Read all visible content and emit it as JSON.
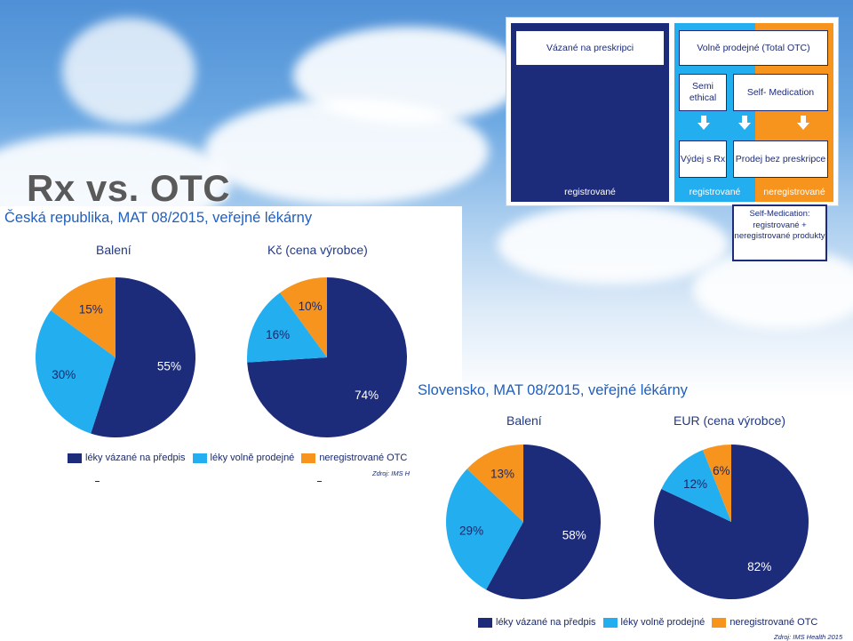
{
  "slide_title": "Rx vs. OTC",
  "colors": {
    "rx": "#1c2b7a",
    "otc": "#23aef0",
    "nonreg": "#f7941d"
  },
  "diagram": {
    "rx_box": "Vázané na preskripci",
    "otc_box": "Volně prodejné (Total OTC)",
    "semi_ethical": "Semi ethical",
    "self_medication": "Self- Medication",
    "vydej_rx": "Výdej s Rx",
    "prodej": "Prodej bez preskripce",
    "foot_rx": "registrované",
    "foot_reg": "registrované",
    "foot_nreg": "neregistrované",
    "note": "Self-Medication: registrované + neregistrované produkty"
  },
  "chart_data": [
    {
      "type": "pie",
      "region": "Česká republika, MAT 08/2015, veřejné lékárny",
      "title": "Balení",
      "categories": [
        "léky vázané na předpis",
        "léky volně prodejné",
        "neregistrované OTC"
      ],
      "values": [
        55,
        30,
        15
      ],
      "labels": [
        "55%",
        "30%",
        "15%"
      ],
      "source": "Zdroj: IMS H"
    },
    {
      "type": "pie",
      "region": "Česká republika, MAT 08/2015, veřejné lékárny",
      "title": "Kč (cena výrobce)",
      "categories": [
        "léky vázané na předpis",
        "léky volně prodejné",
        "neregistrované OTC"
      ],
      "values": [
        74,
        16,
        10
      ],
      "labels": [
        "74%",
        "16%",
        "10%"
      ]
    },
    {
      "type": "pie",
      "region": "Slovensko, MAT 08/2015, veřejné lékárny",
      "title": "Balení",
      "categories": [
        "léky vázané na předpis",
        "léky volně prodejné",
        "neregistrované OTC"
      ],
      "values": [
        58,
        29,
        13
      ],
      "labels": [
        "58%",
        "29%",
        "13%"
      ],
      "source": "Zdroj: IMS Health 2015"
    },
    {
      "type": "pie",
      "region": "Slovensko, MAT 08/2015, veřejné lékárny",
      "title": "EUR (cena výrobce)",
      "categories": [
        "léky vázané na předpis",
        "léky volně prodejné",
        "neregistrované OTC"
      ],
      "values": [
        82,
        12,
        6
      ],
      "labels": [
        "82%",
        "12%",
        "6%"
      ]
    }
  ],
  "legend": [
    "léky vázané na předpis",
    "léky volně prodejné",
    "neregistrované OTC"
  ]
}
